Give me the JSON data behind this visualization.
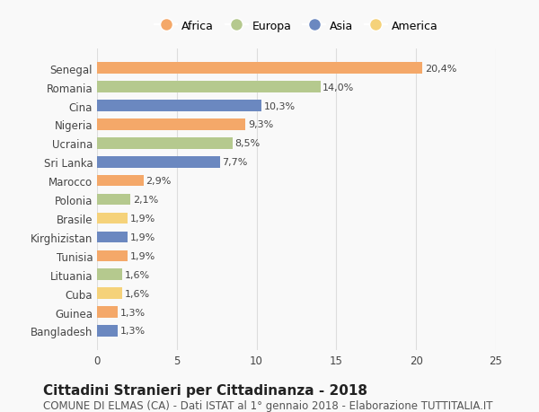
{
  "categories": [
    "Bangladesh",
    "Guinea",
    "Cuba",
    "Lituania",
    "Tunisia",
    "Kirghizistan",
    "Brasile",
    "Polonia",
    "Marocco",
    "Sri Lanka",
    "Ucraina",
    "Nigeria",
    "Cina",
    "Romania",
    "Senegal"
  ],
  "values": [
    1.3,
    1.3,
    1.6,
    1.6,
    1.9,
    1.9,
    1.9,
    2.1,
    2.9,
    7.7,
    8.5,
    9.3,
    10.3,
    14.0,
    20.4
  ],
  "labels": [
    "1,3%",
    "1,3%",
    "1,6%",
    "1,6%",
    "1,9%",
    "1,9%",
    "1,9%",
    "2,1%",
    "2,9%",
    "7,7%",
    "8,5%",
    "9,3%",
    "10,3%",
    "14,0%",
    "20,4%"
  ],
  "continents": [
    "Asia",
    "Africa",
    "America",
    "Europa",
    "Africa",
    "Asia",
    "America",
    "Europa",
    "Africa",
    "Asia",
    "Europa",
    "Africa",
    "Asia",
    "Europa",
    "Africa"
  ],
  "continent_colors": {
    "Africa": "#F4A869",
    "Europa": "#B5C98E",
    "Asia": "#6B88C0",
    "America": "#F5D27A"
  },
  "legend_order": [
    "Africa",
    "Europa",
    "Asia",
    "America"
  ],
  "title": "Cittadini Stranieri per Cittadinanza - 2018",
  "subtitle": "COMUNE DI ELMAS (CA) - Dati ISTAT al 1° gennaio 2018 - Elaborazione TUTTITALIA.IT",
  "xlim": [
    0,
    25
  ],
  "xticks": [
    0,
    5,
    10,
    15,
    20,
    25
  ],
  "background_color": "#f9f9f9",
  "grid_color": "#dddddd",
  "bar_height": 0.6,
  "title_fontsize": 11,
  "subtitle_fontsize": 8.5,
  "label_fontsize": 8,
  "tick_fontsize": 8.5,
  "legend_fontsize": 9
}
